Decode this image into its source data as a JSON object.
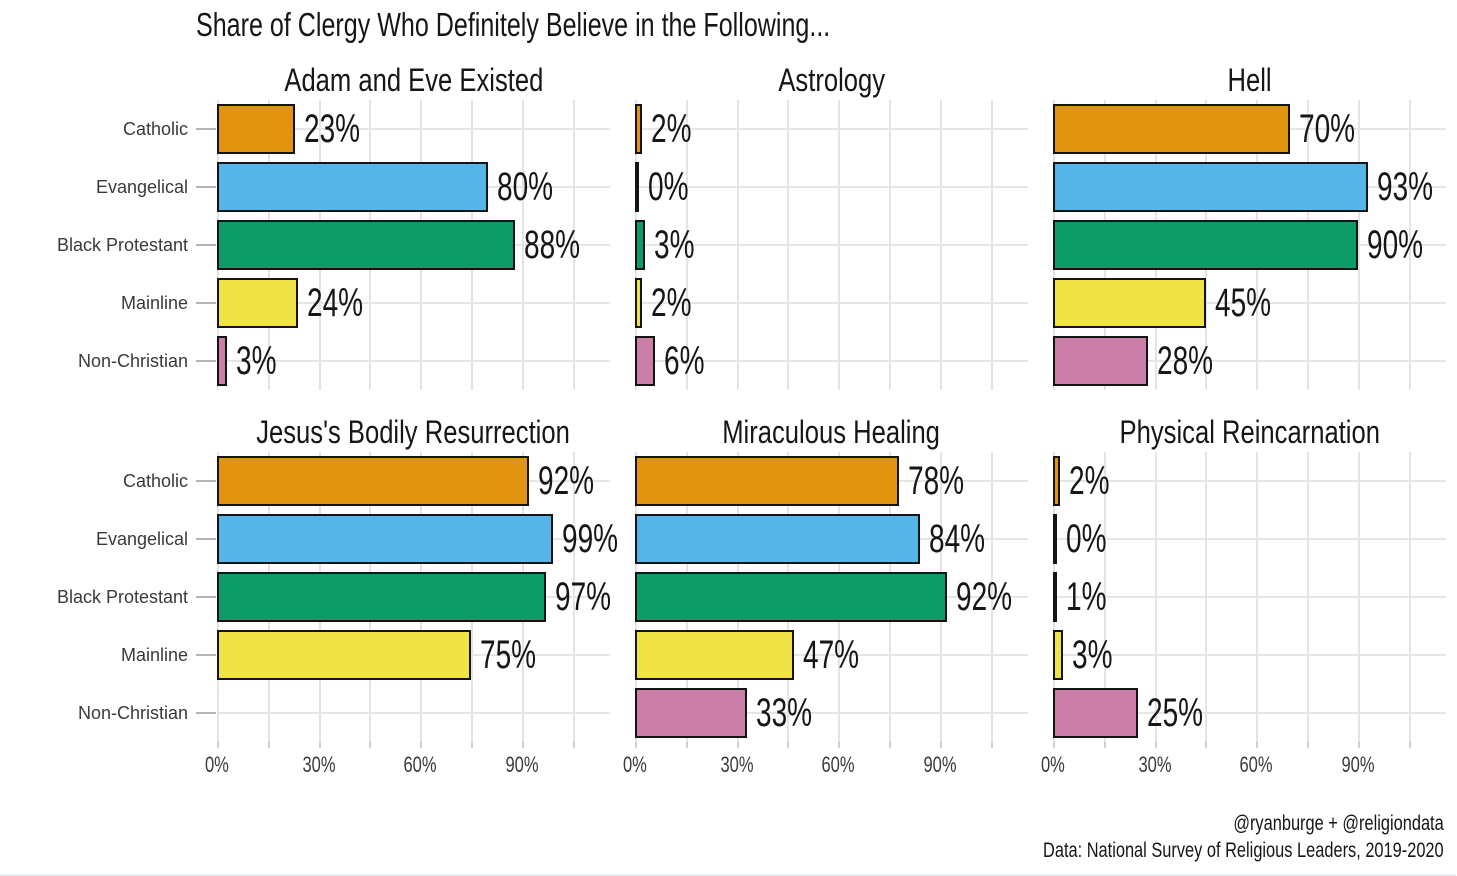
{
  "title": "Share of Clergy Who Definitely Believe in the Following...",
  "footer": {
    "line1": "@ryanburge + @religiondata",
    "line2": "Data: National Survey of Religious Leaders, 2019-2020"
  },
  "chart_data": {
    "type": "bar",
    "orientation": "horizontal",
    "facets": true,
    "title": "Share of Clergy Who Definitely Believe in the Following...",
    "categories": [
      "Catholic",
      "Evangelical",
      "Black Protestant",
      "Mainline",
      "Non-Christian"
    ],
    "category_colors": [
      "#E09410",
      "#56B4E9",
      "#0D9C68",
      "#EFE345",
      "#CB7EA8"
    ],
    "bar_border_color": "#141414",
    "grid_color": "#e4e4e4",
    "panels": [
      {
        "title": "Adam and Eve Existed",
        "values": [
          23,
          80,
          88,
          24,
          3
        ]
      },
      {
        "title": "Astrology",
        "values": [
          2,
          0,
          3,
          2,
          6
        ]
      },
      {
        "title": "Hell",
        "values": [
          70,
          93,
          90,
          45,
          28
        ]
      },
      {
        "title": "Jesus's Bodily Resurrection",
        "values": [
          92,
          99,
          97,
          75,
          null
        ]
      },
      {
        "title": "Miraculous Healing",
        "values": [
          78,
          84,
          92,
          47,
          33
        ]
      },
      {
        "title": "Physical Reincarnation",
        "values": [
          2,
          0,
          1,
          3,
          25
        ]
      }
    ],
    "value_labels_suffix": "%",
    "x_ticks": [
      "0%",
      "30%",
      "60%",
      "90%"
    ],
    "x_tick_values": [
      0,
      30,
      60,
      90
    ],
    "xlim": [
      0,
      116
    ],
    "grid": "major 30% with minor 15% vertical lines; horizontal line per category",
    "legend_position": "none"
  }
}
